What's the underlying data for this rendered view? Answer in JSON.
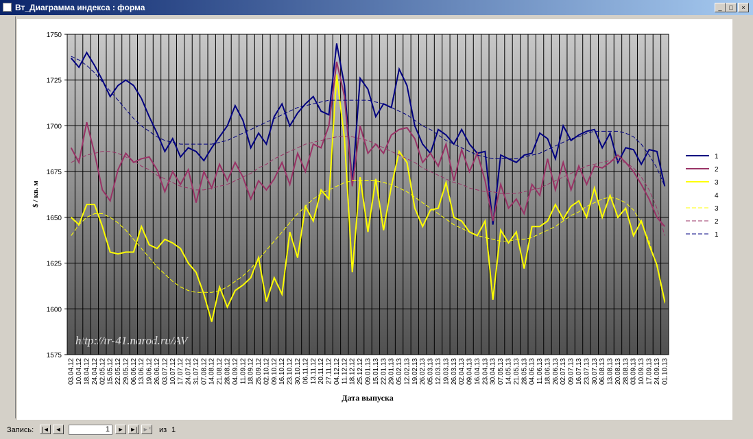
{
  "window": {
    "title": "Вт_Диаграмма индекса : форма"
  },
  "record_nav": {
    "label": "Запись:",
    "current": 1,
    "of": "из",
    "total": 1
  },
  "chart_data": {
    "type": "line",
    "watermark": "http://tr-41.narod.ru/AV",
    "ylabel": "$ / кв. м",
    "xlabel": "Дата выпуска",
    "ylim": [
      1575,
      1750
    ],
    "yticks": [
      1575,
      1600,
      1625,
      1650,
      1675,
      1700,
      1725,
      1750
    ],
    "grid": true,
    "legend": "right",
    "categories": [
      "03.04.12",
      "10.04.12",
      "18.04.12",
      "24.04.12",
      "02.05.12",
      "15.05.12",
      "22.05.12",
      "29.05.12",
      "06.06.12",
      "13.06.12",
      "19.06.12",
      "26.06.12",
      "03.07.12",
      "10.07.12",
      "17.07.12",
      "24.07.12",
      "31.07.12",
      "07.08.12",
      "14.08.12",
      "21.08.12",
      "28.08.12",
      "04.09.12",
      "11.09.12",
      "18.09.12",
      "25.09.12",
      "02.10.12",
      "09.10.12",
      "16.10.12",
      "23.10.12",
      "30.10.12",
      "06.11.12",
      "13.11.12",
      "20.11.12",
      "27.11.12",
      "04.12.12",
      "11.12.12",
      "18.12.12",
      "25.12.12",
      "09.01.13",
      "15.01.13",
      "22.01.13",
      "29.01.13",
      "05.02.13",
      "12.02.13",
      "19.02.13",
      "26.02.13",
      "05.03.13",
      "12.03.13",
      "19.03.13",
      "26.03.13",
      "02.04.13",
      "09.04.13",
      "16.04.13",
      "23.04.13",
      "30.04.13",
      "07.05.13",
      "14.05.13",
      "21.05.13",
      "28.05.13",
      "04.06.13",
      "11.06.13",
      "18.06.13",
      "26.06.13",
      "02.07.13",
      "09.07.13",
      "16.07.13",
      "23.07.13",
      "30.07.13",
      "06.08.13",
      "13.08.13",
      "20.08.13",
      "28.08.13",
      "03.09.13",
      "10.09.13",
      "17.09.13",
      "24.09.13",
      "01.10.13"
    ],
    "series": [
      {
        "name": "1",
        "color": "#000080",
        "style": "solid",
        "values": [
          1737,
          1732,
          1740,
          1733,
          1725,
          1716,
          1722,
          1725,
          1722,
          1715,
          1705,
          1696,
          1686,
          1693,
          1683,
          1688,
          1686,
          1681,
          1688,
          1694,
          1700,
          1711,
          1703,
          1688,
          1696,
          1690,
          1705,
          1712,
          1700,
          1707,
          1712,
          1716,
          1708,
          1706,
          1745,
          1722,
          1668,
          1726,
          1720,
          1705,
          1712,
          1710,
          1731,
          1722,
          1700,
          1690,
          1685,
          1698,
          1695,
          1690,
          1698,
          1690,
          1685,
          1686,
          1646,
          1684,
          1682,
          1680,
          1684,
          1685,
          1696,
          1693,
          1682,
          1700,
          1692,
          1695,
          1697,
          1698,
          1688,
          1696,
          1680,
          1688,
          1687,
          1679,
          1687,
          1686,
          1667
        ]
      },
      {
        "name": "2",
        "color": "#993366",
        "style": "solid",
        "values": [
          1688,
          1680,
          1702,
          1685,
          1665,
          1659,
          1676,
          1685,
          1680,
          1682,
          1683,
          1676,
          1664,
          1675,
          1668,
          1676,
          1658,
          1675,
          1666,
          1679,
          1670,
          1680,
          1672,
          1660,
          1670,
          1665,
          1671,
          1680,
          1668,
          1685,
          1675,
          1690,
          1688,
          1700,
          1735,
          1716,
          1667,
          1700,
          1685,
          1690,
          1685,
          1695,
          1698,
          1699,
          1693,
          1680,
          1685,
          1678,
          1690,
          1670,
          1687,
          1675,
          1685,
          1670,
          1648,
          1668,
          1655,
          1660,
          1652,
          1668,
          1662,
          1682,
          1665,
          1680,
          1665,
          1678,
          1668,
          1678,
          1677,
          1680,
          1684,
          1680,
          1675,
          1668,
          1660,
          1650,
          1645
        ]
      },
      {
        "name": "3",
        "color": "#ffff00",
        "style": "solid",
        "values": [
          1650,
          1646,
          1657,
          1657,
          1645,
          1631,
          1630,
          1631,
          1631,
          1645,
          1635,
          1633,
          1638,
          1636,
          1633,
          1625,
          1620,
          1608,
          1593,
          1612,
          1601,
          1610,
          1613,
          1617,
          1628,
          1604,
          1617,
          1608,
          1642,
          1628,
          1656,
          1648,
          1665,
          1660,
          1728,
          1693,
          1620,
          1672,
          1642,
          1671,
          1643,
          1667,
          1686,
          1680,
          1655,
          1645,
          1654,
          1655,
          1669,
          1650,
          1648,
          1642,
          1640,
          1648,
          1605,
          1643,
          1636,
          1642,
          1622,
          1645,
          1645,
          1648,
          1657,
          1649,
          1656,
          1659,
          1650,
          1666,
          1650,
          1662,
          1650,
          1655,
          1640,
          1648,
          1635,
          1624,
          1604
        ]
      },
      {
        "name": "4",
        "color": "#ffffff",
        "style": "solid",
        "values": [
          null,
          null,
          null,
          null,
          null,
          null,
          null,
          null,
          null,
          null,
          null,
          null,
          null,
          null,
          null,
          null,
          null,
          null,
          null,
          null,
          null,
          null,
          null,
          null,
          null,
          null,
          null,
          null,
          null,
          null,
          null,
          null,
          null,
          null,
          null,
          null,
          null,
          null,
          null,
          null,
          null,
          null,
          null,
          null,
          null,
          null,
          null,
          null,
          null,
          null,
          null,
          null,
          null,
          null,
          null,
          null,
          null,
          null,
          null,
          null,
          null,
          null,
          null,
          null,
          null,
          null,
          null,
          null,
          null,
          null,
          null,
          null,
          null,
          null,
          null,
          null,
          null
        ]
      },
      {
        "name": "3",
        "color": "#ffff00",
        "style": "dashed",
        "values": [
          1640,
          1646,
          1650,
          1652,
          1652,
          1650,
          1647,
          1643,
          1638,
          1633,
          1628,
          1623,
          1619,
          1615,
          1612,
          1610,
          1609,
          1609,
          1609,
          1610,
          1612,
          1615,
          1618,
          1622,
          1627,
          1632,
          1637,
          1642,
          1647,
          1652,
          1656,
          1660,
          1663,
          1665,
          1667,
          1669,
          1670,
          1670,
          1670,
          1670,
          1669,
          1668,
          1666,
          1664,
          1661,
          1658,
          1655,
          1652,
          1649,
          1646,
          1644,
          1642,
          1640,
          1639,
          1638,
          1637,
          1637,
          1638,
          1638,
          1639,
          1641,
          1643,
          1645,
          1648,
          1651,
          1653,
          1656,
          1658,
          1660,
          1661,
          1660,
          1658,
          1654,
          1647,
          1637,
          1623,
          1603
        ]
      },
      {
        "name": "2",
        "color": "#993366",
        "style": "dashed",
        "values": [
          1680,
          1682,
          1684,
          1685,
          1686,
          1686,
          1685,
          1683,
          1681,
          1678,
          1676,
          1673,
          1671,
          1669,
          1667,
          1666,
          1665,
          1665,
          1666,
          1667,
          1668,
          1670,
          1672,
          1674,
          1677,
          1679,
          1682,
          1684,
          1686,
          1688,
          1690,
          1691,
          1692,
          1693,
          1694,
          1694,
          1694,
          1693,
          1692,
          1690,
          1688,
          1686,
          1684,
          1682,
          1680,
          1677,
          1675,
          1673,
          1671,
          1669,
          1668,
          1666,
          1665,
          1664,
          1664,
          1663,
          1663,
          1663,
          1664,
          1665,
          1666,
          1668,
          1670,
          1672,
          1674,
          1676,
          1678,
          1679,
          1680,
          1681,
          1681,
          1680,
          1677,
          1672,
          1665,
          1655,
          1640
        ]
      },
      {
        "name": "1",
        "color": "#000080",
        "style": "dashed",
        "values": [
          1738,
          1736,
          1733,
          1729,
          1724,
          1719,
          1714,
          1709,
          1704,
          1700,
          1697,
          1694,
          1692,
          1691,
          1690,
          1690,
          1690,
          1690,
          1690,
          1691,
          1692,
          1694,
          1696,
          1698,
          1700,
          1702,
          1704,
          1706,
          1708,
          1710,
          1711,
          1712,
          1713,
          1714,
          1714,
          1714,
          1714,
          1714,
          1714,
          1713,
          1712,
          1710,
          1708,
          1706,
          1703,
          1700,
          1698,
          1695,
          1692,
          1690,
          1688,
          1686,
          1684,
          1683,
          1682,
          1682,
          1682,
          1682,
          1683,
          1684,
          1685,
          1687,
          1689,
          1691,
          1693,
          1694,
          1696,
          1697,
          1697,
          1697,
          1697,
          1696,
          1694,
          1690,
          1684,
          1677,
          1667
        ]
      }
    ]
  }
}
